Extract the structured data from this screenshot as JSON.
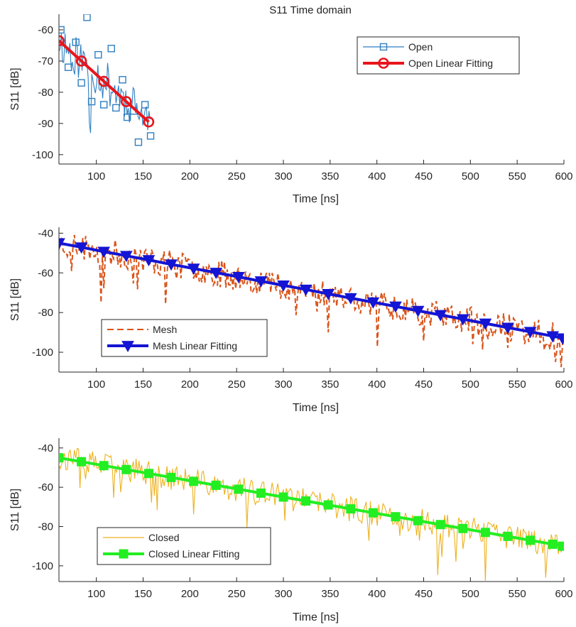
{
  "figure_title": "S11 Time domain",
  "chart_data": [
    {
      "type": "line",
      "title": "S11 Time domain",
      "xlabel": "Time [ns]",
      "ylabel": "S11 [dB]",
      "xlim": [
        60,
        600
      ],
      "ylim": [
        -103,
        -55
      ],
      "xticks": [
        100,
        150,
        200,
        250,
        300,
        350,
        400,
        450,
        500,
        550,
        600
      ],
      "yticks": [
        -100,
        -90,
        -80,
        -70,
        -60
      ],
      "grid": false,
      "legend_position": "top-right",
      "noise": {
        "x_start": 60,
        "x_end": 158,
        "step": 1.3,
        "start_db": -63.5,
        "end_db": -89.5,
        "amplitude": 7,
        "seed": 11
      },
      "series": [
        {
          "name": "Open",
          "style": "thin-line-square-markers",
          "color": "#2f7fc1",
          "x": [
            62,
            70,
            78,
            84,
            90,
            95,
            102,
            108,
            116,
            121,
            128,
            133,
            140,
            145,
            152,
            158
          ],
          "y": [
            -60,
            -72,
            -64,
            -77,
            -56,
            -83,
            -68,
            -84,
            -66,
            -85,
            -76,
            -88,
            -86,
            -96,
            -84,
            -94
          ]
        },
        {
          "name": "Open Linear Fitting",
          "style": "thick-line-circle-markers",
          "color": "#e8151c",
          "x": [
            60,
            84,
            108,
            132,
            156
          ],
          "y": [
            -63.5,
            -70,
            -76.5,
            -83,
            -89.5
          ]
        }
      ]
    },
    {
      "type": "line",
      "title": "",
      "xlabel": "Time [ns]",
      "ylabel": "S11 [dB]",
      "xlim": [
        60,
        600
      ],
      "ylim": [
        -110,
        -37
      ],
      "xticks": [
        100,
        150,
        200,
        250,
        300,
        350,
        400,
        450,
        500,
        550,
        600
      ],
      "yticks": [
        -100,
        -80,
        -60,
        -40
      ],
      "grid": false,
      "legend_position": "bottom-left",
      "noise": {
        "x_start": 60,
        "x_end": 600,
        "step": 1.5,
        "start_db": -45,
        "end_db": -93,
        "amplitude": 7,
        "seed": 23
      },
      "series": [
        {
          "name": "Mesh",
          "style": "dashed-line",
          "color": "#d9541a",
          "x": [],
          "y": []
        },
        {
          "name": "Mesh Linear Fitting",
          "style": "thick-line-triangle-markers",
          "color": "#1414d4",
          "x": [
            60,
            84,
            108,
            132,
            156,
            180,
            204,
            228,
            252,
            276,
            300,
            324,
            348,
            372,
            396,
            420,
            444,
            468,
            492,
            516,
            540,
            564,
            588
          ],
          "y": [
            -45,
            -47.1,
            -49.3,
            -51.4,
            -53.5,
            -55.7,
            -57.8,
            -59.9,
            -62,
            -64.2,
            -66.3,
            -68.4,
            -70.6,
            -72.7,
            -74.8,
            -76.9,
            -79.1,
            -81.2,
            -83.3,
            -85.5,
            -87.6,
            -89.7,
            -91.9
          ]
        }
      ]
    },
    {
      "type": "line",
      "title": "",
      "xlabel": "Time [ns]",
      "ylabel": "S11 [dB]",
      "xlim": [
        60,
        600
      ],
      "ylim": [
        -108,
        -35
      ],
      "xticks": [
        100,
        150,
        200,
        250,
        300,
        350,
        400,
        450,
        500,
        550,
        600
      ],
      "yticks": [
        -100,
        -80,
        -60,
        -40
      ],
      "grid": false,
      "legend_position": "bottom-left",
      "noise": {
        "x_start": 60,
        "x_end": 600,
        "step": 1.5,
        "start_db": -45,
        "end_db": -90,
        "amplitude": 6.5,
        "seed": 37
      },
      "series": [
        {
          "name": "Closed",
          "style": "thin-line",
          "color": "#edb120",
          "x": [],
          "y": []
        },
        {
          "name": "Closed Linear Fitting",
          "style": "thick-line-square-markers",
          "color": "#22ee22",
          "x": [
            60,
            84,
            108,
            132,
            156,
            180,
            204,
            228,
            252,
            276,
            300,
            324,
            348,
            372,
            396,
            420,
            444,
            468,
            492,
            516,
            540,
            564,
            588
          ],
          "y": [
            -45,
            -47,
            -49,
            -51,
            -53,
            -55,
            -57,
            -59,
            -61,
            -63,
            -65,
            -67,
            -69,
            -71,
            -73,
            -75,
            -77,
            -79,
            -81,
            -83,
            -85,
            -87,
            -89
          ]
        }
      ]
    }
  ]
}
